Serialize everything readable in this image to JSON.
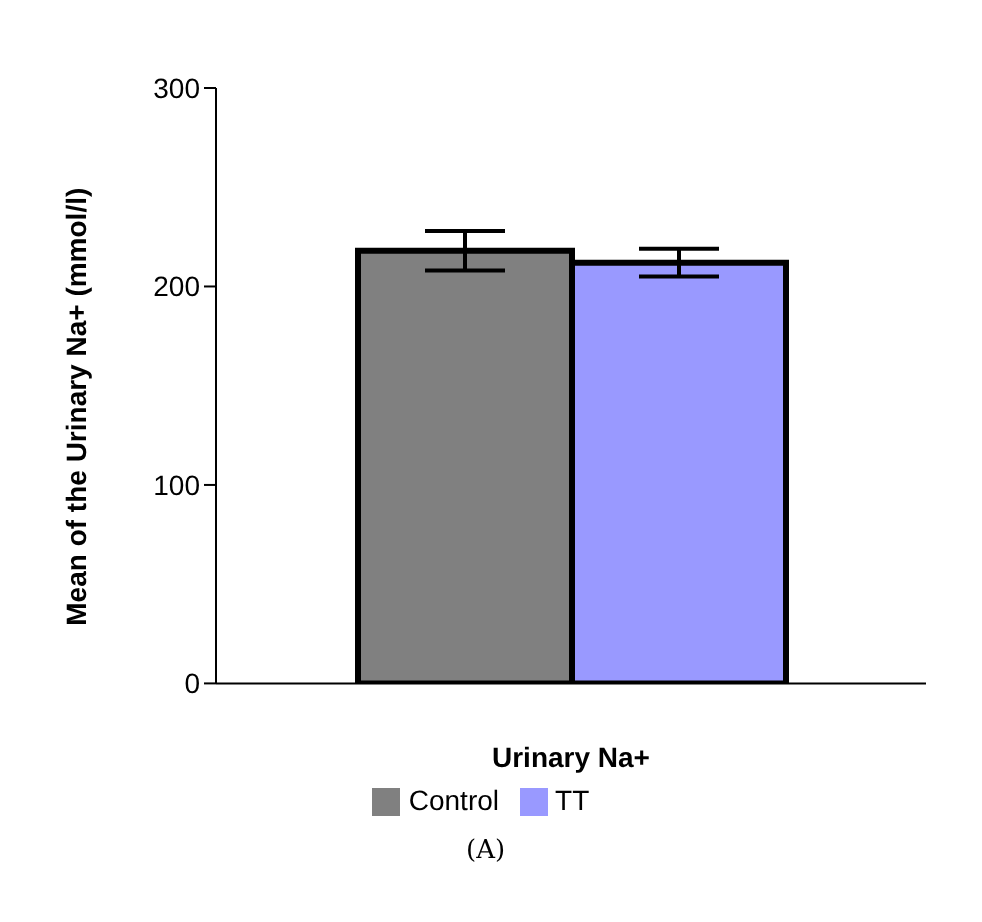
{
  "chart_data": {
    "type": "bar",
    "categories": [
      null
    ],
    "xlabel": "Urinary Na+",
    "ylabel": "Mean of the Urinary Na+ (mmol/l)",
    "series": [
      {
        "name": "Control",
        "color": "#808080",
        "values": [
          218
        ],
        "errors": [
          10
        ]
      },
      {
        "name": "TT",
        "color": "#9999ff",
        "values": [
          212
        ],
        "errors": [
          7
        ]
      }
    ],
    "ylim": [
      0,
      300
    ],
    "yticks": [
      0,
      100,
      200,
      300
    ],
    "grid": false,
    "legend": "bottom",
    "annotations": [
      "(A)"
    ]
  }
}
